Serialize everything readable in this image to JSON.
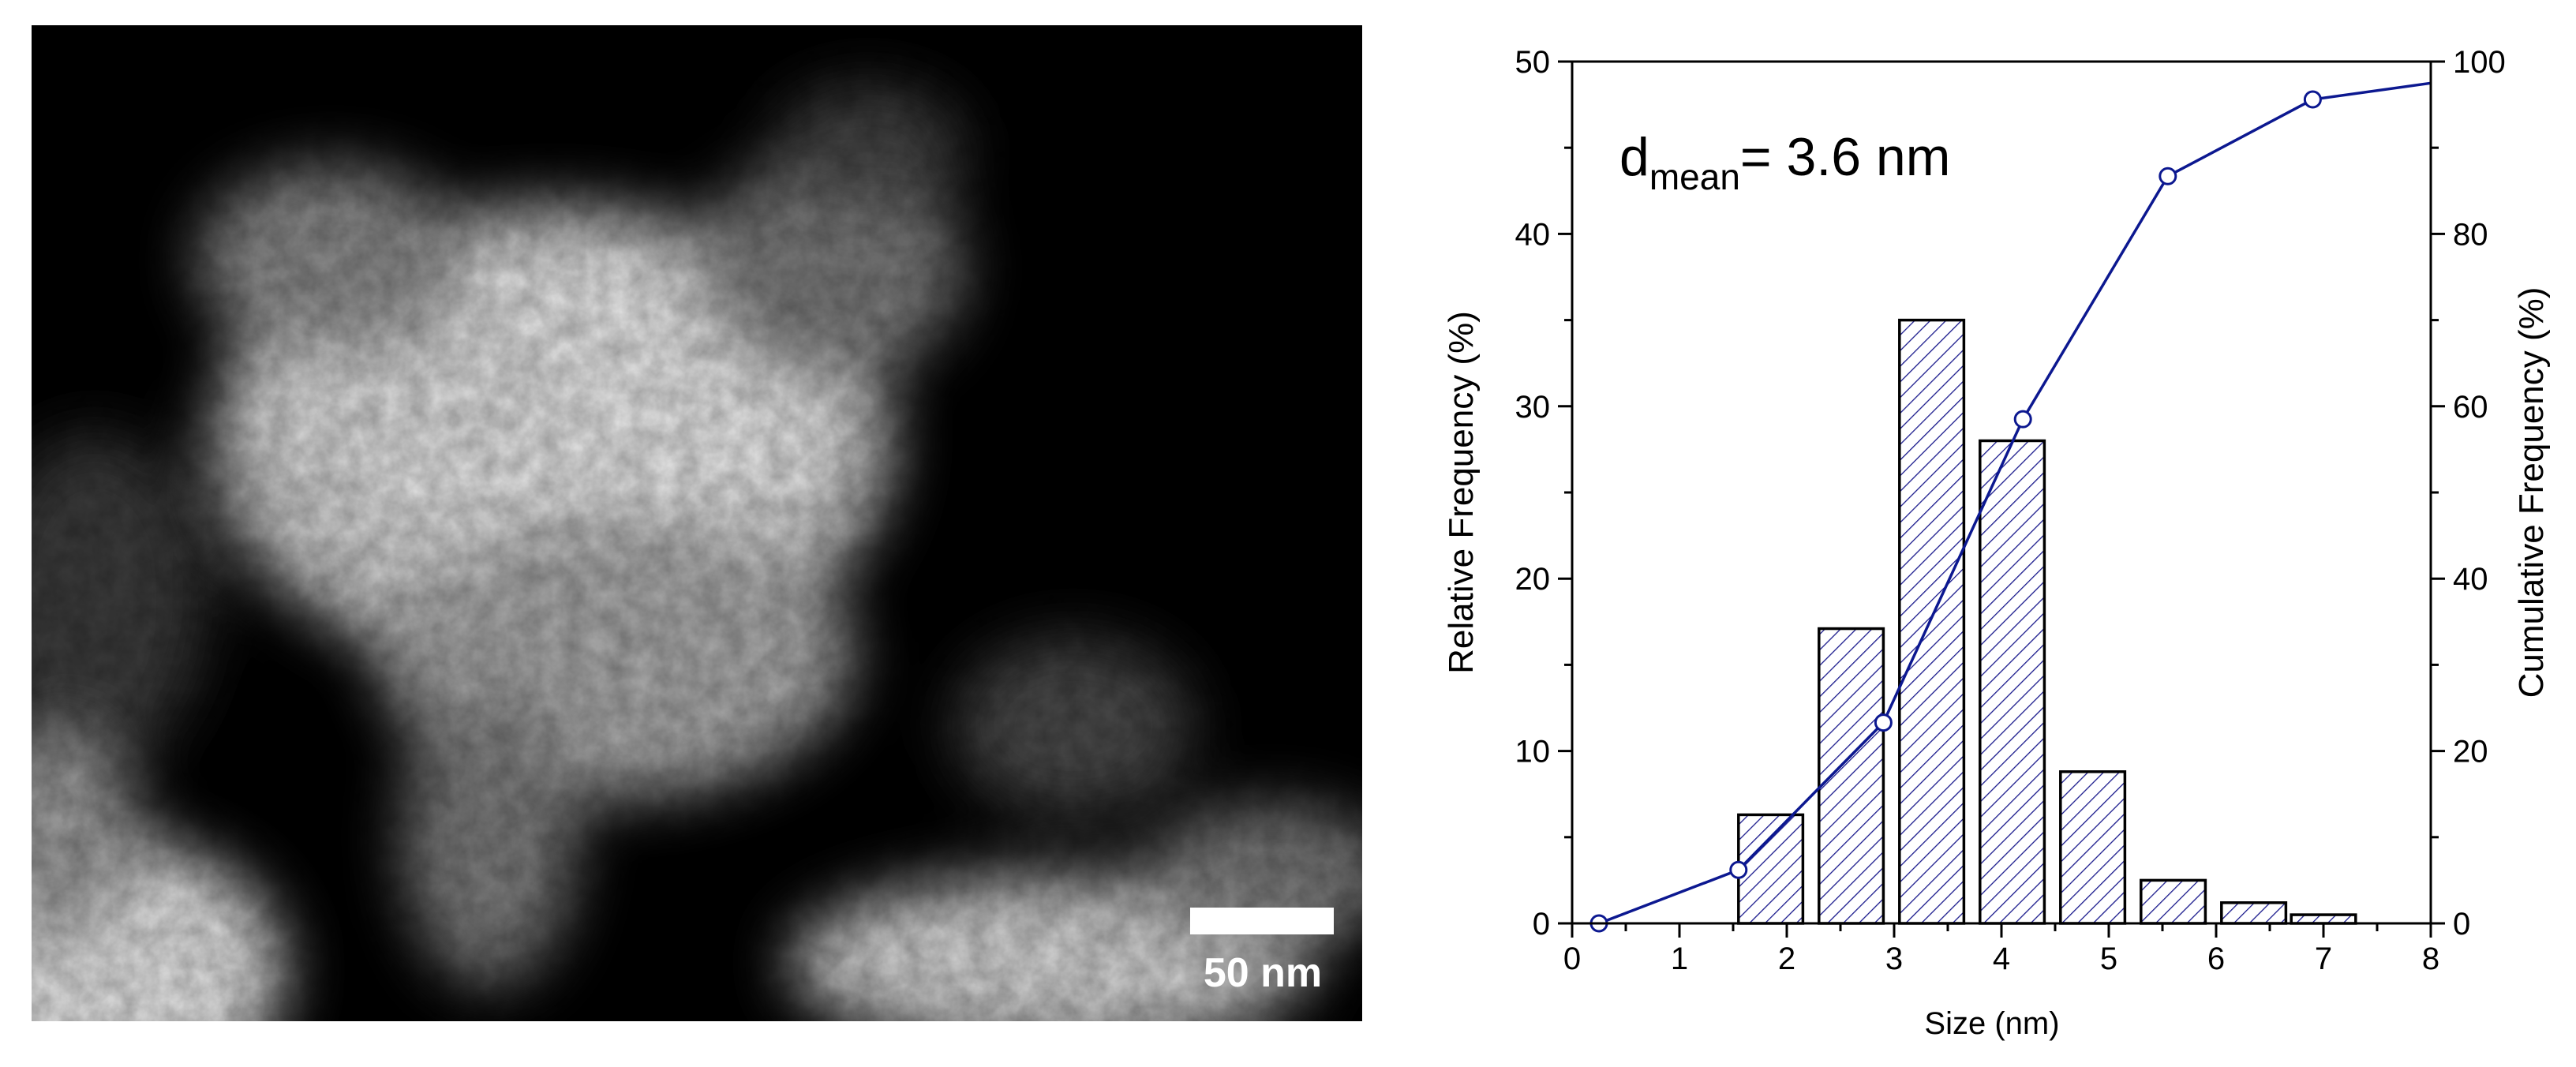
{
  "micrograph": {
    "scale_bar_label": "50 nm"
  },
  "chart_data": {
    "type": "bar",
    "annotation": {
      "base": "d",
      "subscript": "mean",
      "suffix": "= 3.6 nm"
    },
    "xlabel": "Size (nm)",
    "ylabel": "Relative Frequency (%)",
    "y2label": "Cumulative Frequency (%)",
    "xlim": [
      0,
      8
    ],
    "ylim": [
      0,
      50
    ],
    "y2lim": [
      0,
      100
    ],
    "xticks": [
      0,
      1,
      2,
      3,
      4,
      5,
      6,
      7,
      8
    ],
    "yticks": [
      0,
      10,
      20,
      30,
      40,
      50
    ],
    "y2ticks": [
      0,
      20,
      40,
      60,
      80,
      100
    ],
    "bar_width": 0.6,
    "series": [
      {
        "kind": "bar",
        "axis": "left",
        "fill": "hatched",
        "x": [
          1.85,
          2.6,
          3.35,
          4.1,
          4.85,
          5.6,
          6.35,
          7.0
        ],
        "values": [
          6.3,
          17.1,
          35.0,
          28.0,
          8.8,
          2.5,
          1.2,
          0.5
        ]
      },
      {
        "kind": "line",
        "axis": "right",
        "marker": "open-circle",
        "x": [
          0.25,
          1.55,
          2.9,
          4.2,
          5.55,
          6.9,
          8.0
        ],
        "values": [
          0,
          6.2,
          23.3,
          58.5,
          86.7,
          95.6,
          97.5
        ]
      }
    ],
    "colors": {
      "bar_outline": "#000000",
      "hatch": "#1a1a8c",
      "line": "#0c1890",
      "axis": "#000000"
    }
  }
}
